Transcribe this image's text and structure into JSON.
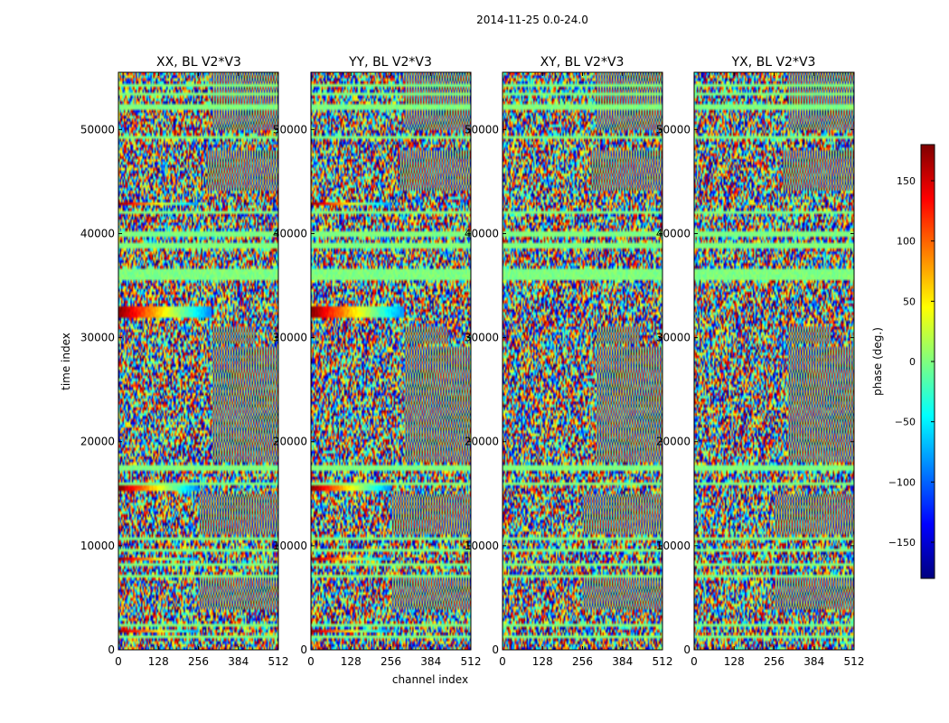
{
  "figure_title": "2014-11-25 0.0-24.0",
  "chart_data": {
    "type": "heatmap",
    "suptitle": "2014-11-25 0.0-24.0",
    "xlabel": "channel index",
    "ylabel": "time index",
    "xlim": [
      0,
      512
    ],
    "ylim": [
      0,
      55500
    ],
    "x_ticks": [
      0,
      128,
      256,
      384,
      512
    ],
    "y_ticks": [
      0,
      10000,
      20000,
      30000,
      40000,
      50000
    ],
    "panels": [
      {
        "title": "XX, BL V2*V3",
        "polarization": "XX"
      },
      {
        "title": "YY, BL V2*V3",
        "polarization": "YY"
      },
      {
        "title": "XY, BL V2*V3",
        "polarization": "XY"
      },
      {
        "title": "YX, BL V2*V3",
        "polarization": "YX"
      }
    ],
    "colorbar": {
      "label": "phase (deg.)",
      "range": [
        -180,
        180
      ],
      "ticks": [
        -150,
        -100,
        -50,
        0,
        50,
        100,
        150
      ],
      "colormap": "jet",
      "colors": [
        "#00007f",
        "#0000ff",
        "#007fff",
        "#00ffff",
        "#7fff7f",
        "#ffff00",
        "#ff7f00",
        "#ff0000",
        "#7f0000"
      ]
    },
    "flagged_time_bands": [
      [
        1200,
        1500
      ],
      [
        2100,
        2500
      ],
      [
        7000,
        7300
      ],
      [
        8000,
        8300
      ],
      [
        9300,
        9600
      ],
      [
        10500,
        10800
      ],
      [
        15800,
        16200
      ],
      [
        17100,
        17800
      ],
      [
        35600,
        36500
      ],
      [
        38600,
        39100
      ],
      [
        39600,
        40300
      ],
      [
        41800,
        42300
      ],
      [
        49000,
        49500
      ],
      [
        52000,
        52400
      ],
      [
        53200,
        53500
      ],
      [
        54000,
        54300
      ]
    ],
    "phase_gradient_bands": [
      {
        "panels": [
          "XX",
          "YY"
        ],
        "t": [
          1700,
          2000
        ],
        "ch": [
          0,
          256
        ]
      },
      {
        "panels": [
          "XX",
          "YY"
        ],
        "t": [
          8700,
          8950
        ],
        "ch": [
          0,
          256
        ]
      },
      {
        "panels": [
          "XX",
          "YY"
        ],
        "t": [
          15300,
          15700
        ],
        "ch": [
          0,
          256
        ]
      },
      {
        "panels": [
          "XX",
          "YY"
        ],
        "t": [
          31800,
          32900
        ],
        "ch": [
          0,
          300
        ]
      },
      {
        "panels": [
          "XX",
          "YY"
        ],
        "t": [
          42700,
          43100
        ],
        "ch": [
          0,
          256
        ]
      }
    ],
    "fringe_regions": [
      {
        "t": [
          4000,
          7000
        ],
        "ch": [
          256,
          512
        ]
      },
      {
        "t": [
          11000,
          15000
        ],
        "ch": [
          256,
          512
        ]
      },
      {
        "t": [
          18000,
          29000
        ],
        "ch": [
          300,
          512
        ]
      },
      {
        "t": [
          29500,
          31000
        ],
        "ch": [
          300,
          440
        ]
      },
      {
        "t": [
          44000,
          48000
        ],
        "ch": [
          280,
          512
        ]
      },
      {
        "t": [
          50000,
          55500
        ],
        "ch": [
          300,
          512
        ]
      }
    ]
  }
}
